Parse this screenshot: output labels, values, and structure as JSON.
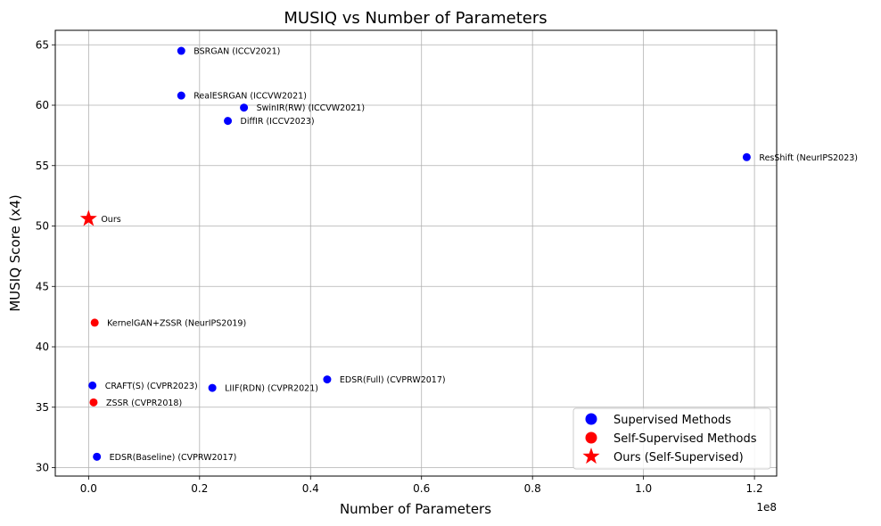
{
  "chart_data": {
    "type": "scatter",
    "title": "MUSIQ vs Number of Parameters",
    "xlabel": "Number of Parameters",
    "ylabel": "MUSIQ Score (x4)",
    "x_offset_label": "1e8",
    "xlim": [
      -6000000,
      124000000
    ],
    "ylim": [
      29.3,
      66.2
    ],
    "x_ticks": [
      0,
      20000000,
      40000000,
      60000000,
      80000000,
      100000000,
      120000000
    ],
    "x_tick_labels": [
      "0.0",
      "0.2",
      "0.4",
      "0.6",
      "0.8",
      "1.0",
      "1.2"
    ],
    "y_ticks": [
      30,
      35,
      40,
      45,
      50,
      55,
      60,
      65
    ],
    "y_tick_labels": [
      "30",
      "35",
      "40",
      "45",
      "50",
      "55",
      "60",
      "65"
    ],
    "grid": true,
    "legend_position": "lower-right",
    "colors": {
      "supervised": "#0000ff",
      "self_supervised": "#ff0000",
      "ours": "#ff0000"
    },
    "legend": [
      {
        "label": "Supervised Methods",
        "marker": "circle",
        "color": "#0000ff"
      },
      {
        "label": "Self-Supervised Methods",
        "marker": "circle",
        "color": "#ff0000"
      },
      {
        "label": "Ours (Self-Supervised)",
        "marker": "star",
        "color": "#ff0000"
      }
    ],
    "points": [
      {
        "label": "BSRGAN (ICCV2021)",
        "x": 16700000,
        "y": 64.5,
        "group": "supervised"
      },
      {
        "label": "RealESRGAN (ICCVW2021)",
        "x": 16700000,
        "y": 60.8,
        "group": "supervised"
      },
      {
        "label": "SwinIR(RW) (ICCVW2021)",
        "x": 28000000,
        "y": 59.8,
        "group": "supervised"
      },
      {
        "label": "DiffIR (ICCV2023)",
        "x": 25100000,
        "y": 58.7,
        "group": "supervised"
      },
      {
        "label": "ResShift (NeurIPS2023)",
        "x": 118600000,
        "y": 55.7,
        "group": "supervised"
      },
      {
        "label": "Ours",
        "x": 0,
        "y": 50.6,
        "group": "ours"
      },
      {
        "label": "KernelGAN+ZSSR (NeurIPS2019)",
        "x": 1100000,
        "y": 42.0,
        "group": "self_supervised"
      },
      {
        "label": "EDSR(Full) (CVPRW2017)",
        "x": 43000000,
        "y": 37.3,
        "group": "supervised"
      },
      {
        "label": "CRAFT(S) (CVPR2023)",
        "x": 700000,
        "y": 36.8,
        "group": "supervised"
      },
      {
        "label": "LIIF(RDN) (CVPR2021)",
        "x": 22300000,
        "y": 36.6,
        "group": "supervised"
      },
      {
        "label": "ZSSR (CVPR2018)",
        "x": 900000,
        "y": 35.4,
        "group": "self_supervised"
      },
      {
        "label": "EDSR(Baseline) (CVPRW2017)",
        "x": 1500000,
        "y": 30.9,
        "group": "supervised"
      }
    ]
  }
}
